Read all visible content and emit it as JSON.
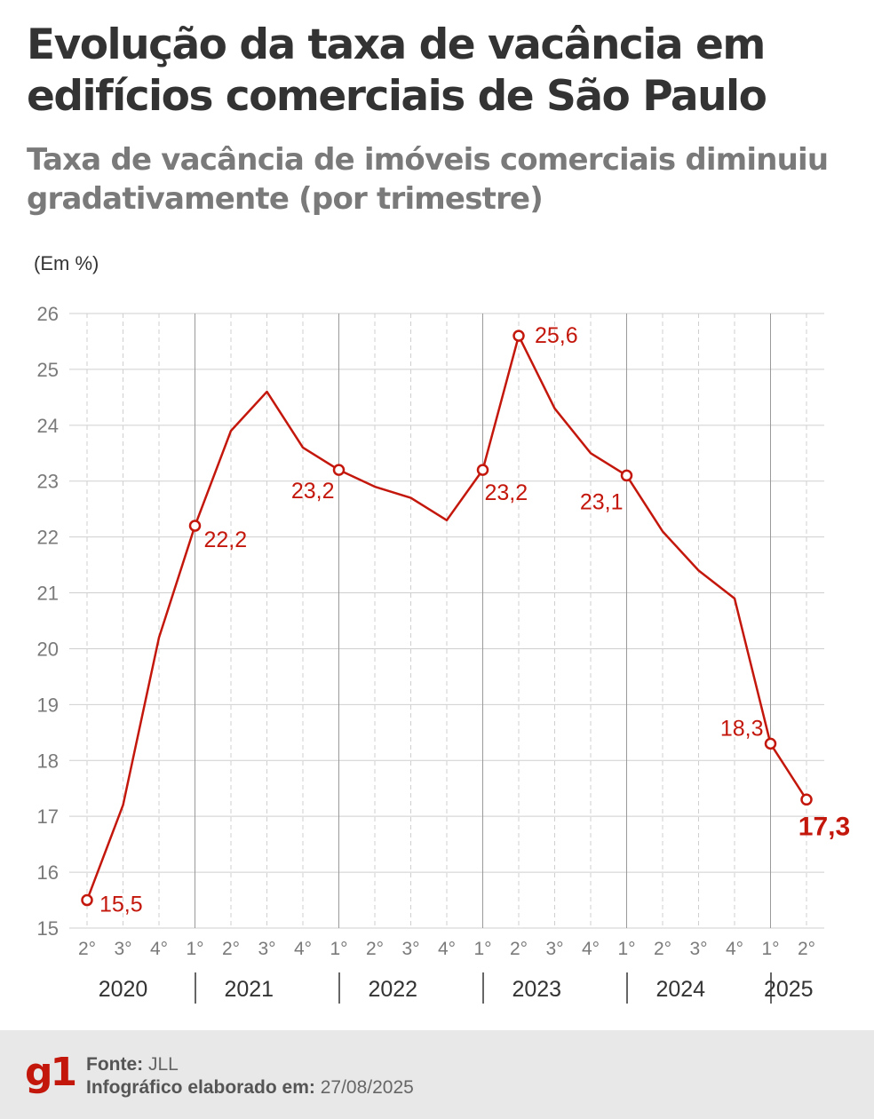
{
  "header": {
    "title": "Evolução da taxa de vacância em edifícios comerciais de São Paulo",
    "subtitle": "Taxa de vacância de imóveis comerciais diminuiu gradativamente (por trimestre)",
    "unit": "(Em %)"
  },
  "colors": {
    "line": "#c4170c",
    "title": "#333333",
    "subtitle": "#7a7a7a",
    "grid": "#d0d0d0",
    "footer_bg": "#e8e8e8",
    "brand": "#c4170c"
  },
  "chart_data": {
    "type": "line",
    "ylim": [
      15,
      26
    ],
    "yticks": [
      15,
      16,
      17,
      18,
      19,
      20,
      21,
      22,
      23,
      24,
      25,
      26
    ],
    "quarters": [
      "2°",
      "3°",
      "4°",
      "1°",
      "2°",
      "3°",
      "4°",
      "1°",
      "2°",
      "3°",
      "4°",
      "1°",
      "2°",
      "3°",
      "4°",
      "1°",
      "2°",
      "3°",
      "4°",
      "1°",
      "2°"
    ],
    "years": [
      {
        "label": "2020",
        "start": 0,
        "end": 2
      },
      {
        "label": "2021",
        "start": 3,
        "end": 6
      },
      {
        "label": "2022",
        "start": 7,
        "end": 10
      },
      {
        "label": "2023",
        "start": 11,
        "end": 14
      },
      {
        "label": "2024",
        "start": 15,
        "end": 18
      },
      {
        "label": "2025",
        "start": 19,
        "end": 20
      }
    ],
    "series": [
      {
        "values": [
          15.5,
          17.2,
          20.2,
          22.2,
          23.9,
          24.6,
          23.6,
          23.2,
          22.9,
          22.7,
          22.3,
          23.2,
          25.6,
          24.3,
          23.5,
          23.1,
          22.1,
          21.4,
          20.9,
          18.3,
          17.3
        ]
      }
    ],
    "labeled_points": [
      {
        "index": 0,
        "label": "15,5"
      },
      {
        "index": 3,
        "label": "22,2"
      },
      {
        "index": 7,
        "label": "23,2"
      },
      {
        "index": 11,
        "label": "23,2"
      },
      {
        "index": 12,
        "label": "25,6"
      },
      {
        "index": 15,
        "label": "23,1"
      },
      {
        "index": 19,
        "label": "18,3"
      },
      {
        "index": 20,
        "label": "17,3",
        "bold": true
      }
    ]
  },
  "footer": {
    "logo": "g1",
    "source_label": "Fonte:",
    "source": "JLL",
    "made_label": "Infográfico elaborado em:",
    "made_date": "27/08/2025"
  }
}
